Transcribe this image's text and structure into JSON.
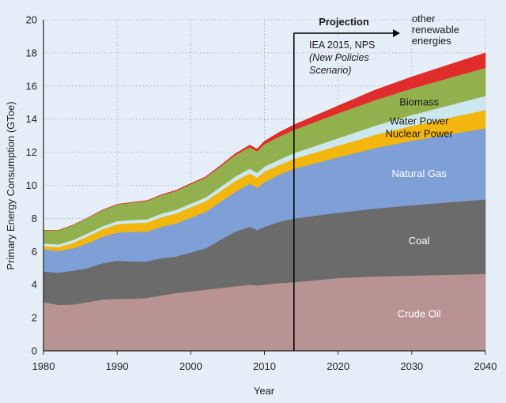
{
  "chart_data": {
    "type": "area",
    "stacked": true,
    "xlabel": "Year",
    "ylabel": "Primary Energy Consumption (GToe)",
    "xlim": [
      1980,
      2040
    ],
    "ylim": [
      0,
      20
    ],
    "x_ticks": [
      "1980",
      "1990",
      "2000",
      "2010",
      "2020",
      "2030",
      "2040"
    ],
    "y_ticks": [
      "0",
      "2",
      "4",
      "6",
      "8",
      "10",
      "12",
      "14",
      "16",
      "18",
      "20"
    ],
    "grid": "horizontal dotted",
    "x": [
      1980,
      1982,
      1984,
      1986,
      1988,
      1990,
      1992,
      1994,
      1996,
      1998,
      2000,
      2002,
      2004,
      2006,
      2008,
      2009,
      2010,
      2012,
      2014,
      2020,
      2025,
      2030,
      2035,
      2040
    ],
    "series": [
      {
        "name": "Crude Oil",
        "color": "#b99393",
        "values": [
          2.95,
          2.78,
          2.8,
          2.95,
          3.1,
          3.15,
          3.15,
          3.2,
          3.35,
          3.5,
          3.6,
          3.7,
          3.8,
          3.9,
          4.0,
          3.95,
          4.0,
          4.1,
          4.15,
          4.4,
          4.5,
          4.55,
          4.6,
          4.65
        ]
      },
      {
        "name": "Coal",
        "color": "#6b6b6b",
        "values": [
          1.85,
          1.95,
          2.05,
          2.05,
          2.2,
          2.3,
          2.25,
          2.2,
          2.25,
          2.2,
          2.35,
          2.5,
          2.9,
          3.3,
          3.5,
          3.35,
          3.5,
          3.7,
          3.85,
          3.95,
          4.1,
          4.25,
          4.38,
          4.5
        ]
      },
      {
        "name": "Natural Gas",
        "color": "#7f9fd7",
        "values": [
          1.35,
          1.3,
          1.35,
          1.5,
          1.6,
          1.7,
          1.8,
          1.8,
          1.9,
          2.0,
          2.1,
          2.2,
          2.3,
          2.4,
          2.6,
          2.55,
          2.7,
          2.85,
          3.0,
          3.35,
          3.65,
          3.9,
          4.1,
          4.3
        ]
      },
      {
        "name": "Nuclear Power",
        "color": "#f3b60e",
        "values": [
          0.19,
          0.24,
          0.33,
          0.42,
          0.45,
          0.5,
          0.52,
          0.55,
          0.58,
          0.6,
          0.63,
          0.64,
          0.65,
          0.66,
          0.63,
          0.62,
          0.64,
          0.58,
          0.6,
          0.7,
          0.8,
          0.9,
          1.0,
          1.1
        ]
      },
      {
        "name": "Water Power",
        "color": "#cce8ee",
        "values": [
          0.15,
          0.16,
          0.17,
          0.18,
          0.18,
          0.19,
          0.19,
          0.2,
          0.21,
          0.22,
          0.22,
          0.23,
          0.24,
          0.26,
          0.28,
          0.28,
          0.3,
          0.32,
          0.35,
          0.45,
          0.55,
          0.65,
          0.75,
          0.85
        ]
      },
      {
        "name": "Biomass",
        "color": "#93b04e",
        "values": [
          0.8,
          0.85,
          0.9,
          0.93,
          0.97,
          1.0,
          1.05,
          1.1,
          1.12,
          1.15,
          1.18,
          1.2,
          1.25,
          1.3,
          1.3,
          1.3,
          1.35,
          1.4,
          1.4,
          1.5,
          1.55,
          1.6,
          1.65,
          1.7
        ]
      },
      {
        "name": "other renewable energies",
        "color": "#e02d2b",
        "values": [
          0.0,
          0.0,
          0.0,
          0.0,
          0.01,
          0.01,
          0.01,
          0.02,
          0.02,
          0.03,
          0.03,
          0.04,
          0.05,
          0.08,
          0.12,
          0.14,
          0.18,
          0.25,
          0.3,
          0.45,
          0.6,
          0.7,
          0.8,
          0.9
        ]
      }
    ],
    "labels": [
      {
        "text": "Crude Oil",
        "series": "Crude Oil",
        "color": "#ffffff"
      },
      {
        "text": "Coal",
        "series": "Coal",
        "color": "#ffffff"
      },
      {
        "text": "Natural Gas",
        "series": "Natural Gas",
        "color": "#ffffff"
      },
      {
        "text": "Nuclear Power",
        "series": "Nuclear Power",
        "color": "#1a1a1a"
      },
      {
        "text": "Water Power",
        "series": "Water Power",
        "color": "#1a1a1a"
      },
      {
        "text": "Biomass",
        "series": "Biomass",
        "color": "#1a1a1a"
      },
      {
        "lines": [
          "other",
          "renewable",
          "energies"
        ],
        "series": "other renewable energies",
        "color": "#1a1a1a"
      }
    ],
    "projection": {
      "start_year": 2014,
      "title": "Projection",
      "lines": [
        "IEA 2015, NPS",
        "(New  Policies",
        "Scenario)"
      ]
    }
  }
}
